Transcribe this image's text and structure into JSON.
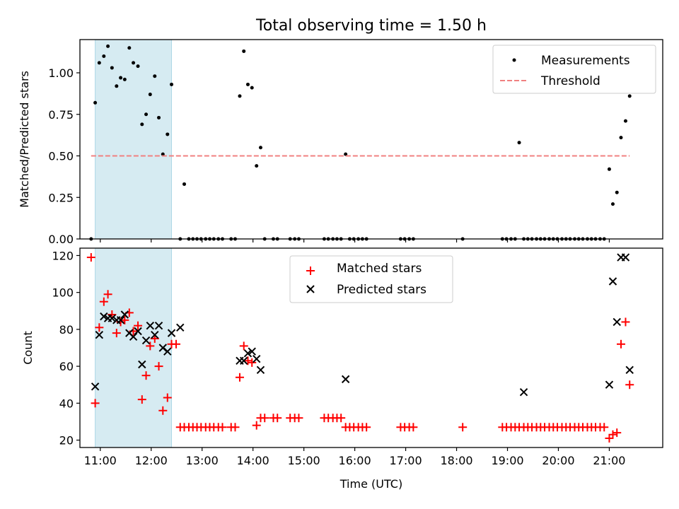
{
  "chart_data": [
    {
      "type": "scatter",
      "title": "Total observing time = 1.50 h",
      "xlabel": "",
      "ylabel": "Matched/Predicted stars",
      "xlim": [
        10.6,
        22.05
      ],
      "ylim": [
        0,
        1.2
      ],
      "yticks": [
        0.0,
        0.25,
        0.5,
        0.75,
        1.0
      ],
      "ytick_labels": [
        "0.00",
        "0.25",
        "0.50",
        "0.75",
        "1.00"
      ],
      "highlight_span": {
        "from": 10.9,
        "to": 12.4,
        "color": "#add8e6"
      },
      "legend": {
        "position": "top-right",
        "entries": [
          "Measurements",
          "Threshold"
        ]
      },
      "series": [
        {
          "name": "Measurements",
          "kind": "scatter",
          "color": "#000000",
          "x": [
            10.82,
            10.9,
            10.98,
            11.07,
            11.15,
            11.23,
            11.32,
            11.4,
            11.48,
            11.57,
            11.65,
            11.74,
            11.82,
            11.9,
            11.98,
            12.07,
            12.15,
            12.23,
            12.32,
            12.4,
            12.57,
            12.65,
            12.74,
            12.82,
            12.9,
            12.98,
            13.07,
            13.15,
            13.23,
            13.32,
            13.4,
            13.57,
            13.65,
            13.74,
            13.82,
            13.9,
            13.98,
            14.07,
            14.15,
            14.23,
            14.4,
            14.48,
            14.73,
            14.82,
            14.9,
            15.4,
            15.48,
            15.57,
            15.65,
            15.73,
            15.82,
            15.9,
            15.98,
            16.07,
            16.15,
            16.23,
            16.9,
            16.98,
            17.07,
            17.15,
            18.12,
            18.9,
            18.98,
            19.07,
            19.15,
            19.23,
            19.32,
            19.4,
            19.48,
            19.57,
            19.65,
            19.73,
            19.82,
            19.9,
            19.98,
            20.07,
            20.15,
            20.23,
            20.32,
            20.4,
            20.48,
            20.57,
            20.65,
            20.73,
            20.82,
            20.9,
            21.0,
            21.07,
            21.15,
            21.23,
            21.32,
            21.4
          ],
          "y": [
            0.0,
            0.82,
            1.06,
            1.1,
            1.16,
            1.03,
            0.92,
            0.97,
            0.96,
            1.15,
            1.06,
            1.04,
            0.69,
            0.75,
            0.87,
            0.98,
            0.73,
            0.51,
            0.63,
            0.93,
            0.0,
            0.33,
            0.0,
            0.0,
            0.0,
            0.0,
            0.0,
            0.0,
            0.0,
            0.0,
            0.0,
            0.0,
            0.0,
            0.86,
            1.13,
            0.93,
            0.91,
            0.44,
            0.55,
            0.0,
            0.0,
            0.0,
            0.0,
            0.0,
            0.0,
            0.0,
            0.0,
            0.0,
            0.0,
            0.0,
            0.51,
            0.0,
            0.0,
            0.0,
            0.0,
            0.0,
            0.0,
            0.0,
            0.0,
            0.0,
            0.0,
            0.0,
            0.0,
            0.0,
            0.0,
            0.58,
            0.0,
            0.0,
            0.0,
            0.0,
            0.0,
            0.0,
            0.0,
            0.0,
            0.0,
            0.0,
            0.0,
            0.0,
            0.0,
            0.0,
            0.0,
            0.0,
            0.0,
            0.0,
            0.0,
            0.0,
            0.42,
            0.21,
            0.28,
            0.61,
            0.71,
            0.86
          ]
        },
        {
          "name": "Threshold",
          "kind": "dashed-line",
          "color": "#f08080",
          "x": [
            10.82,
            21.4
          ],
          "y": [
            0.5,
            0.5
          ]
        }
      ]
    },
    {
      "type": "scatter",
      "title": "",
      "xlabel": "Time (UTC)",
      "ylabel": "Count",
      "xlim": [
        10.6,
        22.05
      ],
      "ylim": [
        16,
        124
      ],
      "xticks": [
        11,
        12,
        13,
        14,
        15,
        16,
        17,
        18,
        19,
        20,
        21
      ],
      "xtick_labels": [
        "11:00",
        "12:00",
        "13:00",
        "14:00",
        "15:00",
        "16:00",
        "17:00",
        "18:00",
        "19:00",
        "20:00",
        "21:00"
      ],
      "yticks": [
        20,
        40,
        60,
        80,
        100,
        120
      ],
      "ytick_labels": [
        "20",
        "40",
        "60",
        "80",
        "100",
        "120"
      ],
      "highlight_span": {
        "from": 10.9,
        "to": 12.4,
        "color": "#add8e6"
      },
      "legend": {
        "position": "top-center",
        "entries": [
          "Matched stars",
          "Predicted stars"
        ]
      },
      "series": [
        {
          "name": "Matched stars",
          "kind": "plus",
          "color": "#ff0000",
          "x": [
            10.82,
            10.9,
            10.98,
            11.07,
            11.15,
            11.23,
            11.32,
            11.4,
            11.48,
            11.57,
            11.65,
            11.74,
            11.82,
            11.9,
            11.98,
            12.07,
            12.15,
            12.23,
            12.32,
            12.4,
            12.49,
            12.57,
            12.65,
            12.74,
            12.82,
            12.9,
            12.98,
            13.07,
            13.15,
            13.23,
            13.32,
            13.4,
            13.57,
            13.65,
            13.74,
            13.82,
            13.9,
            13.98,
            14.07,
            14.15,
            14.23,
            14.4,
            14.48,
            14.73,
            14.82,
            14.9,
            15.4,
            15.48,
            15.57,
            15.65,
            15.73,
            15.82,
            15.9,
            15.98,
            16.07,
            16.15,
            16.23,
            16.9,
            16.98,
            17.07,
            17.15,
            18.12,
            18.9,
            18.98,
            19.07,
            19.15,
            19.23,
            19.32,
            19.4,
            19.48,
            19.57,
            19.65,
            19.73,
            19.82,
            19.9,
            19.98,
            20.07,
            20.15,
            20.23,
            20.32,
            20.4,
            20.48,
            20.57,
            20.65,
            20.73,
            20.82,
            20.9,
            21.0,
            21.07,
            21.15,
            21.23,
            21.32,
            21.4
          ],
          "y": [
            119,
            40,
            81,
            95,
            99,
            88,
            78,
            84,
            85,
            89,
            79,
            82,
            42,
            55,
            71,
            75,
            60,
            36,
            43,
            72,
            72,
            27,
            27,
            27,
            27,
            27,
            27,
            27,
            27,
            27,
            27,
            27,
            27,
            27,
            54,
            71,
            63,
            62,
            28,
            32,
            32,
            32,
            32,
            32,
            32,
            32,
            32,
            32,
            32,
            32,
            32,
            27,
            27,
            27,
            27,
            27,
            27,
            27,
            27,
            27,
            27,
            27,
            27,
            27,
            27,
            27,
            27,
            27,
            27,
            27,
            27,
            27,
            27,
            27,
            27,
            27,
            27,
            27,
            27,
            27,
            27,
            27,
            27,
            27,
            27,
            27,
            27,
            21,
            23,
            24,
            72,
            84,
            50
          ]
        },
        {
          "name": "Predicted stars",
          "kind": "x",
          "color": "#000000",
          "x": [
            10.9,
            10.98,
            11.07,
            11.15,
            11.23,
            11.32,
            11.4,
            11.48,
            11.57,
            11.65,
            11.74,
            11.82,
            11.9,
            11.98,
            12.07,
            12.15,
            12.23,
            12.32,
            12.4,
            12.57,
            13.74,
            13.82,
            13.9,
            13.98,
            14.07,
            14.15,
            15.82,
            19.32,
            21.0,
            21.07,
            21.15,
            21.23,
            21.32,
            21.4
          ],
          "y": [
            49,
            77,
            87,
            86,
            86,
            85,
            85,
            88,
            78,
            76,
            79,
            61,
            74,
            82,
            77,
            82,
            70,
            68,
            78,
            81,
            63,
            63,
            67,
            68,
            64,
            58,
            53,
            46,
            50,
            106,
            84,
            119,
            119,
            58
          ]
        }
      ]
    }
  ]
}
